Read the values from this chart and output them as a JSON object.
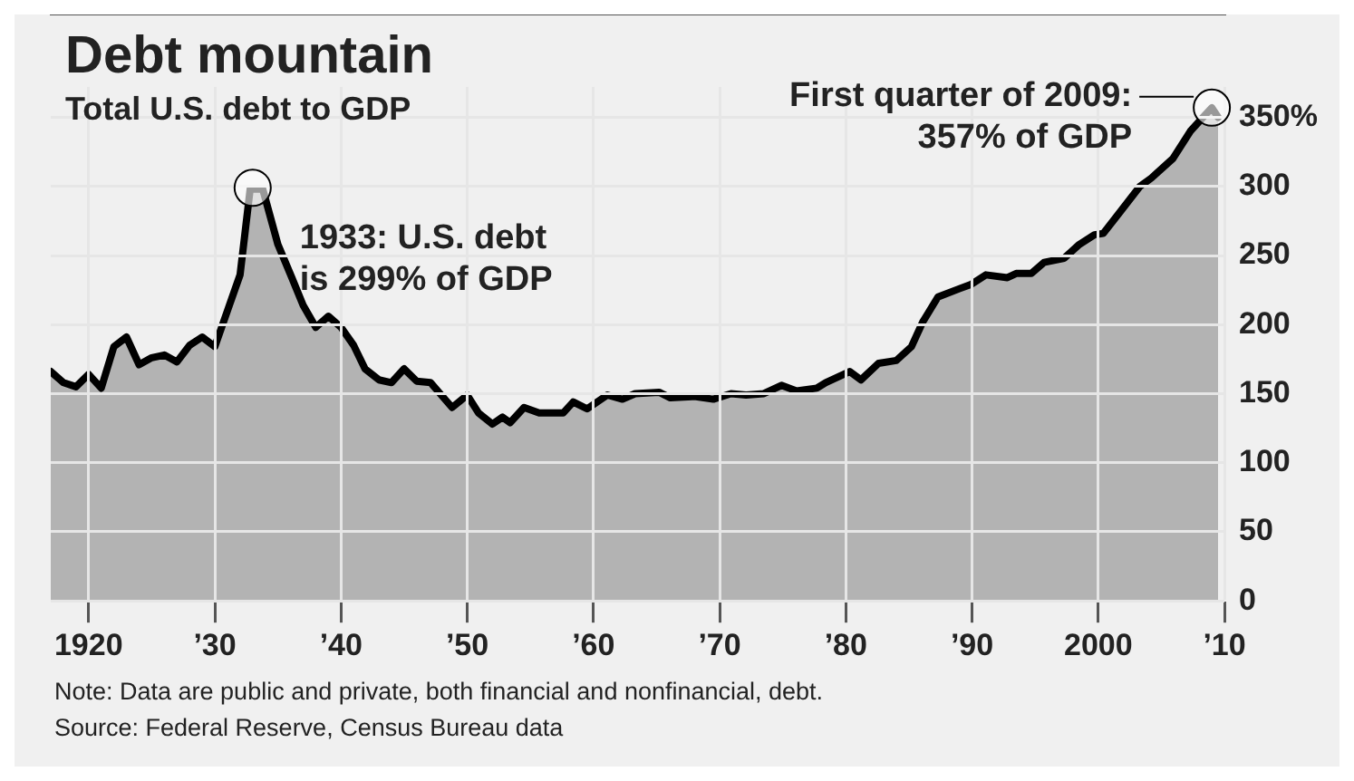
{
  "chart_data": {
    "type": "area",
    "title": "Debt mountain",
    "subtitle": "Total U.S. debt to GDP",
    "x": [
      1917,
      1918,
      1919,
      1920,
      1921,
      1922,
      1923,
      1924,
      1925,
      1926,
      1927,
      1928,
      1929,
      1930,
      1931,
      1932,
      1932.8,
      1933.8,
      1935,
      1936.1,
      1937,
      1938,
      1939,
      1940,
      1941,
      1941.9,
      1943,
      1944,
      1945,
      1946,
      1947.1,
      1948.8,
      1950,
      1950.9,
      1952,
      1952.8,
      1953.4,
      1954.5,
      1955.7,
      1957.6,
      1958.4,
      1959.5,
      1961.1,
      1962.3,
      1963.3,
      1965.2,
      1966.1,
      1968,
      1969.5,
      1970.9,
      1972.1,
      1973.5,
      1974.9,
      1976.1,
      1977.7,
      1978.4,
      1980.3,
      1981.2,
      1982.6,
      1984,
      1985.2,
      1986.1,
      1987.3,
      1989,
      1989.9,
      1991.1,
      1992.8,
      1993.5,
      1994.7,
      1995.7,
      1997.3,
      1998.5,
      1999.7,
      2000.4,
      2001.6,
      2003.3,
      2004.2,
      2005.9,
      2007.3,
      2008.3,
      2009,
      2009.5
    ],
    "series": [
      {
        "color": "#000000",
        "values": [
          166,
          158,
          155,
          164,
          154,
          184,
          191,
          171,
          176,
          178,
          173,
          185,
          191,
          184,
          210,
          236,
          298,
          298,
          258,
          234,
          214,
          198,
          206,
          198,
          185,
          168,
          160,
          158,
          168,
          159,
          158,
          140,
          149,
          136,
          128,
          133,
          129,
          140,
          136,
          136,
          144,
          139,
          149,
          146,
          150,
          151,
          147,
          148,
          146,
          150,
          149,
          150,
          156,
          152,
          154,
          158,
          166,
          160,
          172,
          174,
          184,
          202,
          220,
          226,
          229,
          236,
          234,
          237,
          237,
          245,
          248,
          258,
          265,
          266,
          280,
          300,
          306,
          320,
          340,
          350,
          357,
          350
        ]
      }
    ],
    "xlim": [
      1917,
      2010
    ],
    "xticks": [
      {
        "value": 1920,
        "label": "1920"
      },
      {
        "value": 1930,
        "label": "’30"
      },
      {
        "value": 1940,
        "label": "’40"
      },
      {
        "value": 1950,
        "label": "’50"
      },
      {
        "value": 1960,
        "label": "’60"
      },
      {
        "value": 1970,
        "label": "’70"
      },
      {
        "value": 1980,
        "label": "’80"
      },
      {
        "value": 1990,
        "label": "’90"
      },
      {
        "value": 2000,
        "label": "2000"
      },
      {
        "value": 2010,
        "label": "’10"
      }
    ],
    "ylim": [
      0,
      372
    ],
    "yticks": [
      0,
      50,
      100,
      150,
      200,
      250,
      300,
      {
        "value": 350,
        "label": "350%"
      }
    ],
    "grid": true,
    "legend": false,
    "annotations": [
      {
        "text": "1933: U.S. debt\nis 299% of GDP",
        "x": 1933,
        "y": 299
      },
      {
        "text": "First quarter of 2009:\n357% of GDP",
        "x": 2009,
        "y": 357
      },
      "Note: Data are public and private, both financial and nonfinancial, debt.",
      "Source: Federal Reserve, Census Bureau data"
    ]
  }
}
